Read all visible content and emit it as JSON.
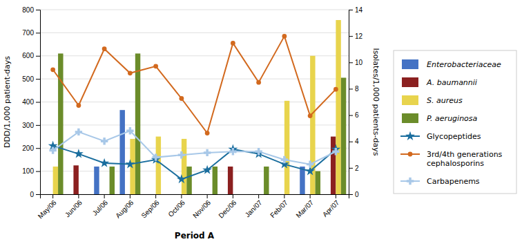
{
  "chart_data": {
    "type": "bar",
    "xlabel": "Period A",
    "ylabel": "DDD/1,000 patient-days",
    "y2label": "Isolates/1,000 patients-days",
    "categories": [
      "May/06",
      "Jun/06",
      "Jul/06",
      "Aug/06",
      "Sep/06",
      "Oct/06",
      "Nov/06",
      "Dec/06",
      "Jan/07",
      "Feb/07",
      "Mar/07",
      "Apr/07"
    ],
    "series": [
      {
        "name": "Enterobacteriaceae",
        "type": "bar",
        "color": "#4472C4",
        "values": [
          0,
          0,
          120,
          365,
          0,
          0,
          0,
          0,
          0,
          0,
          120,
          0
        ]
      },
      {
        "name": "A. baumannii",
        "type": "bar",
        "color": "#8B2020",
        "values": [
          0,
          125,
          0,
          0,
          0,
          0,
          0,
          120,
          0,
          0,
          0,
          250
        ]
      },
      {
        "name": "S. aureus",
        "type": "bar",
        "color": "#E8D44D",
        "values": [
          120,
          0,
          0,
          240,
          250,
          240,
          0,
          0,
          0,
          405,
          600,
          755
        ]
      },
      {
        "name": "P. aeruginosa",
        "type": "bar",
        "color": "#6B8C2A",
        "values": [
          610,
          0,
          120,
          610,
          0,
          120,
          120,
          0,
          120,
          0,
          100,
          505
        ]
      },
      {
        "name": "Glycopeptides",
        "type": "line",
        "marker": "star",
        "color": "#1A6E9E",
        "values": [
          210,
          175,
          135,
          130,
          150,
          65,
          105,
          195,
          175,
          130,
          100,
          195
        ]
      },
      {
        "name": "3rd/4th generations\ncephalosporins",
        "type": "line",
        "marker": "circle",
        "color": "#D2691E",
        "values": [
          540,
          385,
          630,
          525,
          555,
          415,
          265,
          655,
          485,
          685,
          340,
          455
        ]
      },
      {
        "name": "Carbapenems",
        "type": "line",
        "marker": "plus",
        "color": "#A8C8E8",
        "values": [
          190,
          270,
          230,
          275,
          160,
          170,
          180,
          185,
          185,
          150,
          130,
          185
        ]
      }
    ],
    "ylim": [
      0,
      800
    ],
    "yticks": [
      0,
      100,
      200,
      300,
      400,
      500,
      600,
      700,
      800
    ],
    "y2lim": [
      0,
      14
    ],
    "y2ticks": [
      0,
      2,
      4,
      6,
      8,
      10,
      12,
      14
    ],
    "grid": true,
    "legend": "right"
  }
}
